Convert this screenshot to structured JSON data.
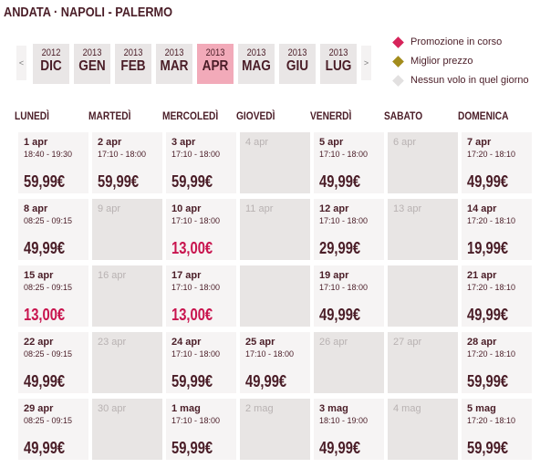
{
  "header": {
    "title": "ANDATA · NAPOLI - PALERMO"
  },
  "nav": {
    "prev": "<",
    "next": ">",
    "months": [
      {
        "year": "2012",
        "month": "DIC"
      },
      {
        "year": "2013",
        "month": "GEN"
      },
      {
        "year": "2013",
        "month": "FEB"
      },
      {
        "year": "2013",
        "month": "MAR"
      },
      {
        "year": "2013",
        "month": "APR",
        "selected": true
      },
      {
        "year": "2013",
        "month": "MAG"
      },
      {
        "year": "2013",
        "month": "GIU"
      },
      {
        "year": "2013",
        "month": "LUG"
      }
    ]
  },
  "legend": [
    {
      "label": "Promozione in corso",
      "color": "#d6245a"
    },
    {
      "label": "Miglior prezzo",
      "color": "#a38c1c"
    },
    {
      "label": "Nessun volo in quel giorno",
      "color": "#e2e0e0"
    }
  ],
  "weekdays": [
    "LUNEDÌ",
    "MARTEDÌ",
    "MERCOLEDÌ",
    "GIOVEDÌ",
    "VENERDÌ",
    "SABATO",
    "DOMENICA"
  ],
  "weeks": [
    [
      {
        "date": "1 apr",
        "time": "18:40 - 19:30",
        "price": "59,99€"
      },
      {
        "date": "2 apr",
        "time": "17:10 - 18:00",
        "price": "59,99€"
      },
      {
        "date": "3 apr",
        "time": "17:10 - 18:00",
        "price": "59,99€"
      },
      {
        "date": "4 apr"
      },
      {
        "date": "5 apr",
        "time": "17:10 - 18:00",
        "price": "49,99€"
      },
      {
        "date": "6 apr"
      },
      {
        "date": "7 apr",
        "time": "17:20 - 18:10",
        "price": "49,99€"
      }
    ],
    [
      {
        "date": "8 apr",
        "time": "08:25 - 09:15",
        "price": "49,99€"
      },
      {
        "date": "9 apr"
      },
      {
        "date": "10 apr",
        "time": "17:10 - 18:00",
        "price": "13,00€",
        "promo": true
      },
      {
        "date": "11 apr"
      },
      {
        "date": "12 apr",
        "time": "17:10 - 18:00",
        "price": "29,99€"
      },
      {
        "date": "13 apr"
      },
      {
        "date": "14 apr",
        "time": "17:20 - 18:10",
        "price": "19,99€"
      }
    ],
    [
      {
        "date": "15 apr",
        "time": "08:25 - 09:15",
        "price": "13,00€",
        "promo": true
      },
      {
        "date": "16 apr"
      },
      {
        "date": "17 apr",
        "time": "17:10 - 18:00",
        "price": "13,00€",
        "promo": true
      },
      null,
      {
        "date": "19 apr",
        "time": "17:10 - 18:00",
        "price": "49,99€"
      },
      null,
      {
        "date": "21 apr",
        "time": "17:20 - 18:10",
        "price": "49,99€"
      }
    ],
    [
      {
        "date": "22 apr",
        "time": "08:25 - 09:15",
        "price": "49,99€"
      },
      {
        "date": "23 apr"
      },
      {
        "date": "24 apr",
        "time": "17:10 - 18:00",
        "price": "59,99€"
      },
      {
        "date": "25 apr",
        "time": "17:10 - 18:00",
        "price": "49,99€"
      },
      {
        "date": "26 apr"
      },
      {
        "date": "27 apr"
      },
      {
        "date": "28 apr",
        "time": "17:20 - 18:10",
        "price": "59,99€"
      }
    ],
    [
      {
        "date": "29 apr",
        "time": "08:25 - 09:15",
        "price": "49,99€"
      },
      {
        "date": "30 apr"
      },
      {
        "date": "1 mag",
        "time": "17:10 - 18:00",
        "price": "59,99€"
      },
      {
        "date": "2 mag"
      },
      {
        "date": "3 mag",
        "time": "18:10 - 19:00",
        "price": "49,99€"
      },
      {
        "date": "4 mag"
      },
      {
        "date": "5 mag",
        "time": "17:20 - 18:10",
        "price": "59,99€"
      }
    ]
  ]
}
